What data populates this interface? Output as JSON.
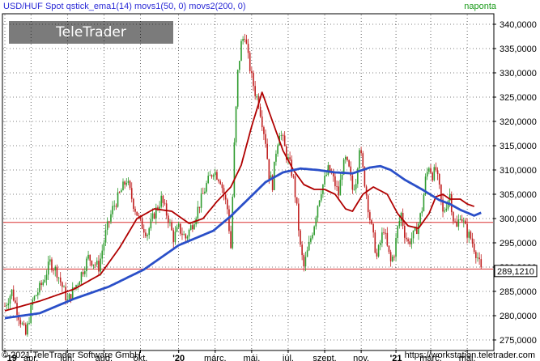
{
  "header": {
    "instrument": "USD/HUF Spot qstick_ema1(14) movs1(50, 0) movs2(200, 0)",
    "interval": "naponta"
  },
  "watermark": {
    "brand": "TeleTrader",
    "product": "WorkStation"
  },
  "footer": {
    "copyright": "© 2021 TeleTrader Software GmbH",
    "url": "https://workstation.teletrader.com"
  },
  "last_price_label": "289,1210",
  "colors": {
    "axis_text": "#000000",
    "header_text": "#2b2bd6",
    "interval_text": "#1a9a1a",
    "grid": "#000000",
    "hline": "#d93030",
    "ma50": "#b00000",
    "ma200": "#2a4fc8",
    "candle_up": "#2e9b2e",
    "candle_down": "#c02020",
    "price_box": "#ffffff"
  },
  "chart_data": {
    "type": "line",
    "title": "USD/HUF Spot",
    "ylim": [
      273,
      342
    ],
    "y_ticks": [
      "275,0000",
      "280,0000",
      "285,0000",
      "290,0000",
      "295,0000",
      "300,0000",
      "305,0000",
      "310,0000",
      "315,0000",
      "320,0000",
      "325,0000",
      "330,0000",
      "335,0000",
      "340,0000"
    ],
    "y_tick_values": [
      275,
      280,
      285,
      290,
      295,
      300,
      305,
      310,
      315,
      320,
      325,
      330,
      335,
      340
    ],
    "x_ticks": [
      "'19",
      "ápr.",
      "jún.",
      "aug.",
      "okt.",
      "'20",
      "márc.",
      "máj.",
      "júl.",
      "szept.",
      "nov.",
      "'21",
      "márc.",
      "máj."
    ],
    "x_tick_index": [
      0,
      15,
      36,
      57,
      78,
      100,
      121,
      142,
      163,
      184,
      205,
      225,
      245,
      266
    ],
    "x_count": 280,
    "horizontal_lines": [
      299.2,
      289.6
    ],
    "close_anchors": [
      [
        0,
        282
      ],
      [
        4,
        285
      ],
      [
        8,
        280
      ],
      [
        12,
        276
      ],
      [
        16,
        283
      ],
      [
        22,
        287
      ],
      [
        26,
        291
      ],
      [
        30,
        289
      ],
      [
        36,
        283
      ],
      [
        42,
        287
      ],
      [
        48,
        292
      ],
      [
        54,
        290
      ],
      [
        58,
        297
      ],
      [
        62,
        302
      ],
      [
        66,
        305
      ],
      [
        70,
        308
      ],
      [
        74,
        303
      ],
      [
        78,
        299
      ],
      [
        82,
        297
      ],
      [
        86,
        301
      ],
      [
        90,
        304
      ],
      [
        94,
        300
      ],
      [
        97,
        296
      ],
      [
        100,
        298
      ],
      [
        104,
        296
      ],
      [
        108,
        299
      ],
      [
        112,
        303
      ],
      [
        116,
        307
      ],
      [
        120,
        310
      ],
      [
        124,
        308
      ],
      [
        128,
        302
      ],
      [
        130,
        294
      ],
      [
        132,
        315
      ],
      [
        134,
        330
      ],
      [
        136,
        336
      ],
      [
        138,
        338
      ],
      [
        140,
        333
      ],
      [
        142,
        329
      ],
      [
        144,
        326
      ],
      [
        146,
        324
      ],
      [
        148,
        320
      ],
      [
        150,
        316
      ],
      [
        152,
        309
      ],
      [
        154,
        307
      ],
      [
        156,
        314
      ],
      [
        158,
        318
      ],
      [
        160,
        316
      ],
      [
        162,
        313
      ],
      [
        164,
        311
      ],
      [
        166,
        308
      ],
      [
        168,
        302
      ],
      [
        170,
        294
      ],
      [
        172,
        290
      ],
      [
        174,
        293
      ],
      [
        176,
        296
      ],
      [
        178,
        299
      ],
      [
        180,
        303
      ],
      [
        182,
        306
      ],
      [
        184,
        308
      ],
      [
        186,
        310
      ],
      [
        188,
        309
      ],
      [
        190,
        307
      ],
      [
        192,
        305
      ],
      [
        194,
        310
      ],
      [
        196,
        312
      ],
      [
        198,
        310
      ],
      [
        200,
        306
      ],
      [
        202,
        308
      ],
      [
        204,
        315
      ],
      [
        206,
        310
      ],
      [
        208,
        305
      ],
      [
        210,
        300
      ],
      [
        212,
        296
      ],
      [
        214,
        292
      ],
      [
        216,
        295
      ],
      [
        218,
        298
      ],
      [
        220,
        294
      ],
      [
        222,
        291
      ],
      [
        224,
        293
      ],
      [
        226,
        298
      ],
      [
        228,
        301
      ],
      [
        230,
        297
      ],
      [
        232,
        295
      ],
      [
        234,
        296
      ],
      [
        236,
        297
      ],
      [
        238,
        299
      ],
      [
        240,
        302
      ],
      [
        242,
        308
      ],
      [
        244,
        311
      ],
      [
        246,
        309
      ],
      [
        248,
        310
      ],
      [
        250,
        306
      ],
      [
        252,
        301
      ],
      [
        254,
        303
      ],
      [
        256,
        305
      ],
      [
        258,
        300
      ],
      [
        260,
        298
      ],
      [
        262,
        301
      ],
      [
        264,
        299
      ],
      [
        266,
        297
      ],
      [
        268,
        296
      ],
      [
        270,
        294
      ],
      [
        272,
        292
      ],
      [
        274,
        289.2
      ]
    ],
    "series": [
      {
        "name": "movs1(50, 0)",
        "anchors": [
          [
            0,
            281
          ],
          [
            20,
            283
          ],
          [
            40,
            285.5
          ],
          [
            55,
            288.5
          ],
          [
            66,
            294
          ],
          [
            76,
            300
          ],
          [
            86,
            302
          ],
          [
            96,
            301.5
          ],
          [
            106,
            299
          ],
          [
            114,
            300
          ],
          [
            122,
            303.5
          ],
          [
            130,
            306.5
          ],
          [
            136,
            311
          ],
          [
            142,
            319
          ],
          [
            148,
            326
          ],
          [
            152,
            322
          ],
          [
            160,
            314
          ],
          [
            166,
            310
          ],
          [
            172,
            307
          ],
          [
            178,
            306
          ],
          [
            184,
            306
          ],
          [
            190,
            305
          ],
          [
            196,
            302
          ],
          [
            200,
            301.5
          ],
          [
            206,
            305
          ],
          [
            212,
            306.5
          ],
          [
            220,
            305
          ],
          [
            226,
            301
          ],
          [
            232,
            298.5
          ],
          [
            238,
            298
          ],
          [
            244,
            301
          ],
          [
            248,
            304.5
          ],
          [
            252,
            305
          ],
          [
            256,
            304
          ],
          [
            262,
            304
          ],
          [
            266,
            303
          ],
          [
            270,
            302.5
          ]
        ]
      },
      {
        "name": "movs2(200, 0)",
        "anchors": [
          [
            0,
            279.5
          ],
          [
            20,
            280.5
          ],
          [
            40,
            283.5
          ],
          [
            60,
            286
          ],
          [
            80,
            289.5
          ],
          [
            100,
            294.5
          ],
          [
            120,
            297.5
          ],
          [
            130,
            300.5
          ],
          [
            140,
            304
          ],
          [
            150,
            307.5
          ],
          [
            160,
            309.5
          ],
          [
            170,
            310.3
          ],
          [
            180,
            310
          ],
          [
            190,
            309.5
          ],
          [
            200,
            309.3
          ],
          [
            210,
            310.5
          ],
          [
            216,
            310.8
          ],
          [
            222,
            310
          ],
          [
            230,
            308
          ],
          [
            240,
            306
          ],
          [
            250,
            303.8
          ],
          [
            256,
            303
          ],
          [
            262,
            301.8
          ],
          [
            266,
            301.2
          ],
          [
            270,
            300.6
          ],
          [
            274,
            301.2
          ]
        ]
      }
    ]
  }
}
